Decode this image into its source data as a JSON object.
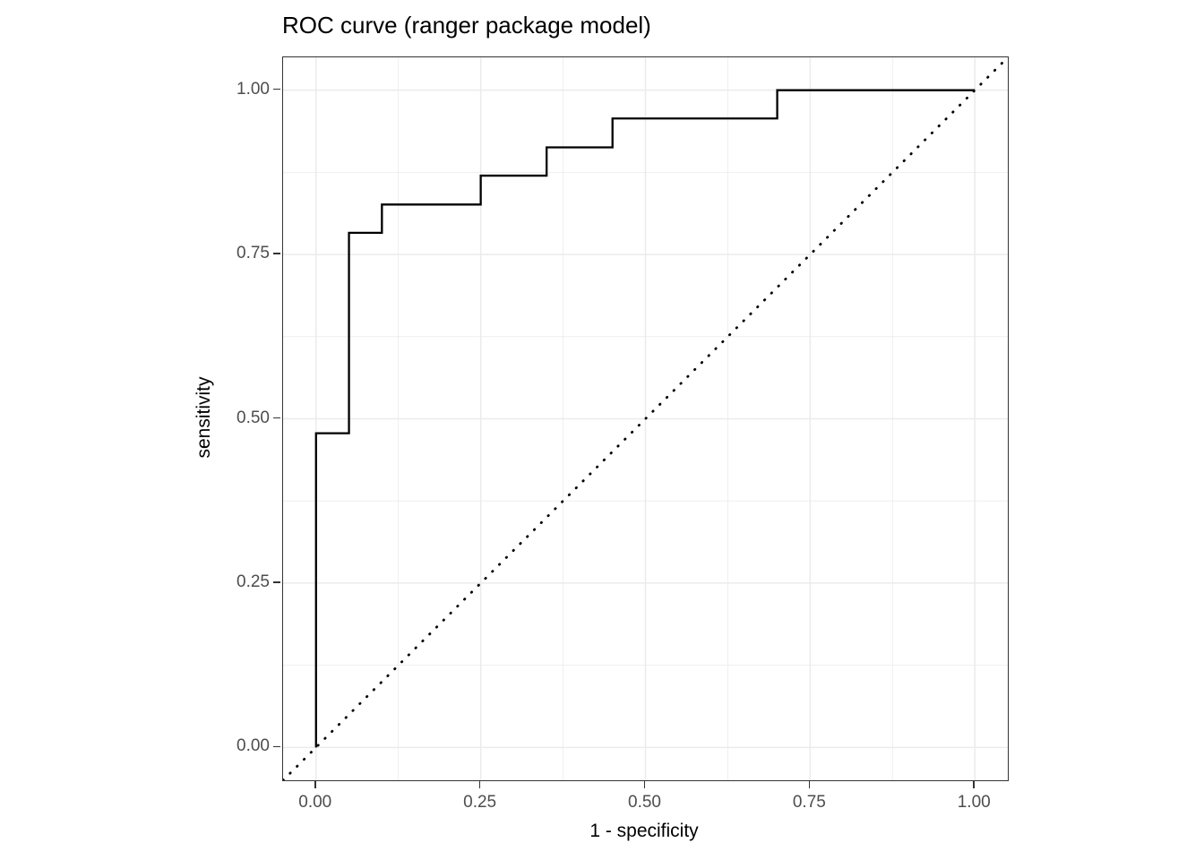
{
  "figure": {
    "background_color": "#ffffff"
  },
  "chart_data": {
    "type": "line",
    "title": "ROC curve (ranger package model)",
    "xlabel": "1 - specificity",
    "ylabel": "sensitivity",
    "xlim": [
      -0.05,
      1.05
    ],
    "ylim": [
      -0.05,
      1.05
    ],
    "x_tick_labels": [
      "0.00",
      "0.25",
      "0.50",
      "0.75",
      "1.00"
    ],
    "y_tick_labels": [
      "0.00",
      "0.25",
      "0.50",
      "0.75",
      "1.00"
    ],
    "x_tick_values": [
      0,
      0.25,
      0.5,
      0.75,
      1
    ],
    "y_tick_values": [
      0,
      0.25,
      0.5,
      0.75,
      1
    ],
    "x_minor_grid_values": [
      0.125,
      0.375,
      0.625,
      0.875
    ],
    "y_minor_grid_values": [
      0.125,
      0.375,
      0.625,
      0.875
    ],
    "grid": "on",
    "legend": "none",
    "series": [
      {
        "name": "roc-curve",
        "style": "solid",
        "color": "#000000",
        "x": [
          0,
          0,
          0.05,
          0.05,
          0.1,
          0.1,
          0.25,
          0.25,
          0.35,
          0.35,
          0.45,
          0.45,
          0.7,
          0.7,
          1.0
        ],
        "y": [
          0,
          0.478,
          0.478,
          0.783,
          0.783,
          0.826,
          0.826,
          0.87,
          0.87,
          0.913,
          0.913,
          0.957,
          0.957,
          1.0,
          1.0
        ]
      },
      {
        "name": "chance-diagonal",
        "style": "dotted",
        "color": "#000000",
        "x": [
          -0.05,
          1.05
        ],
        "y": [
          -0.05,
          1.05
        ]
      }
    ],
    "colors": {
      "grid_major": "#ebebeb",
      "grid_minor": "#ebebeb",
      "panel_border": "#333333",
      "tick_mark": "#333333",
      "tick_label": "#4d4d4d",
      "axis_title": "#000000",
      "title": "#000000",
      "line": "#000000"
    }
  }
}
